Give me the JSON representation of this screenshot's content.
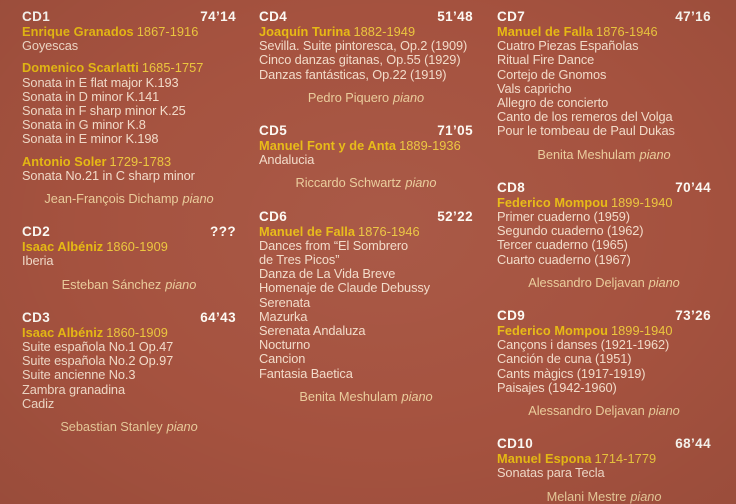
{
  "page": {
    "background": "#A5523F",
    "colors": {
      "cd_header": "#FDFAF4",
      "composer_name": "#E7BA14",
      "composer_dates": "#ECC63E",
      "track": "#F2DBC9",
      "performer": "#EACC9B"
    }
  },
  "columns": [
    [
      {
        "id": "CD1",
        "duration": "74’14",
        "sections": [
          {
            "composer": "Enrique Granados",
            "dates": "1867-1916",
            "tracks": [
              "Goyescas"
            ]
          },
          {
            "composer": "Domenico Scarlatti",
            "dates": "1685-1757",
            "tracks": [
              "Sonata in E flat major K.193",
              "Sonata in D minor K.141",
              "Sonata in F sharp minor K.25",
              "Sonata in G minor K.8",
              "Sonata in E minor K.198"
            ]
          },
          {
            "composer": "Antonio Soler",
            "dates": "1729-1783",
            "tracks": [
              "Sonata No.21 in C sharp minor"
            ]
          }
        ],
        "performer": "Jean-François Dichamp",
        "instrument": "piano"
      },
      {
        "id": "CD2",
        "duration": "???",
        "sections": [
          {
            "composer": "Isaac Albéniz",
            "dates": "1860-1909",
            "tracks": [
              "Iberia"
            ]
          }
        ],
        "performer": "Esteban Sánchez",
        "instrument": "piano"
      },
      {
        "id": "CD3",
        "duration": "64’43",
        "sections": [
          {
            "composer": "Isaac Albéniz",
            "dates": "1860-1909",
            "tracks": [
              "Suite española No.1 Op.47",
              "Suite española No.2 Op.97",
              "Suite ancienne No.3",
              "Zambra granadina",
              "Cadiz"
            ]
          }
        ],
        "performer": "Sebastian Stanley",
        "instrument": "piano"
      }
    ],
    [
      {
        "id": "CD4",
        "duration": "51’48",
        "sections": [
          {
            "composer": "Joaquín Turina",
            "dates": "1882-1949",
            "tracks": [
              "Sevilla. Suite pintoresca, Op.2 (1909)",
              "Cinco danzas gitanas, Op.55 (1929)",
              "Danzas fantásticas, Op.22 (1919)"
            ]
          }
        ],
        "performer": "Pedro Piquero",
        "instrument": "piano"
      },
      {
        "id": "CD5",
        "duration": "71’05",
        "sections": [
          {
            "composer": "Manuel Font y de Anta",
            "dates": "1889-1936",
            "tracks": [
              "Andalucia"
            ]
          }
        ],
        "performer": "Riccardo Schwartz",
        "instrument": "piano"
      },
      {
        "id": "CD6",
        "duration": "52’22",
        "sections": [
          {
            "composer": "Manuel de Falla",
            "dates": "1876-1946",
            "tracks": [
              "Dances from “El Sombrero\nde Tres Picos”",
              "Danza de La Vida Breve",
              "Homenaje de Claude Debussy",
              "Serenata",
              "Mazurka",
              "Serenata Andaluza",
              "Nocturno",
              "Cancion",
              "Fantasia Baetica"
            ]
          }
        ],
        "performer": "Benita Meshulam",
        "instrument": "piano"
      }
    ],
    [
      {
        "id": "CD7",
        "duration": "47’16",
        "sections": [
          {
            "composer": "Manuel de Falla",
            "dates": "1876-1946",
            "tracks": [
              "Cuatro Piezas Españolas",
              "Ritual Fire Dance",
              "Cortejo de Gnomos",
              "Vals capricho",
              "Allegro de concierto",
              "Canto de los remeros del Volga",
              "Pour le tombeau de Paul Dukas"
            ]
          }
        ],
        "performer": "Benita Meshulam",
        "instrument": "piano"
      },
      {
        "id": "CD8",
        "duration": "70’44",
        "sections": [
          {
            "composer": "Federico Mompou",
            "dates": "1899-1940",
            "tracks": [
              "Primer cuaderno (1959)",
              "Segundo cuaderno (1962)",
              "Tercer cuaderno (1965)",
              "Cuarto cuaderno (1967)"
            ]
          }
        ],
        "performer": "Alessandro Deljavan",
        "instrument": "piano"
      },
      {
        "id": "CD9",
        "duration": "73’26",
        "sections": [
          {
            "composer": "Federico Mompou",
            "dates": "1899-1940",
            "tracks": [
              "Cançons i danses (1921-1962)",
              "Canción de cuna (1951)",
              "Cants màgics (1917-1919)",
              "Paisajes (1942-1960)"
            ]
          }
        ],
        "performer": "Alessandro Deljavan",
        "instrument": "piano"
      },
      {
        "id": "CD10",
        "duration": "68’44",
        "sections": [
          {
            "composer": "Manuel Espona",
            "dates": "1714-1779",
            "tracks": [
              "Sonatas para Tecla"
            ]
          }
        ],
        "performer": "Melani Mestre",
        "instrument": "piano"
      }
    ]
  ]
}
